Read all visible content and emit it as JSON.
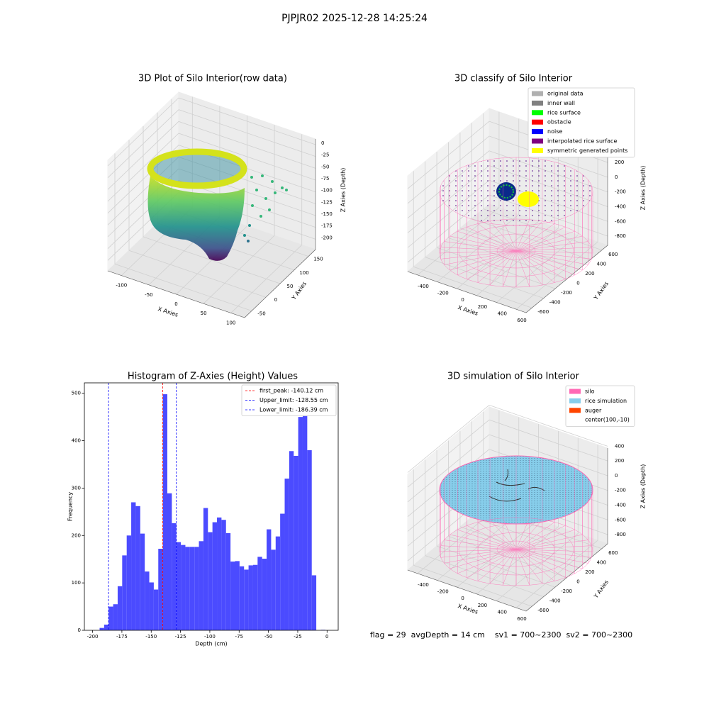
{
  "suptitle": "PJPJR02 2025-12-28 14:25:24",
  "chart_data": [
    {
      "type": "scatter3d",
      "title": "3D Plot of Silo Interior(row data)",
      "xlabel": "X Axies",
      "ylabel": "Y Axies",
      "zlabel": "Z Axies (Depth)",
      "xlim": [
        -125,
        125
      ],
      "xticks": [
        -100,
        -50,
        0,
        50,
        100
      ],
      "ylim": [
        -75,
        175
      ],
      "yticks": [
        -50,
        0,
        50,
        100,
        150
      ],
      "zlim": [
        -222,
        12
      ],
      "zticks": [
        0,
        -25,
        -50,
        -75,
        -100,
        -125,
        -150,
        -175,
        -200
      ],
      "grid": true
    },
    {
      "type": "scatter3d",
      "title": "3D classify of Silo Interior",
      "xlabel": "X Axies",
      "ylabel": "Y Axies",
      "zlabel": "Z Axies (Depth)",
      "xlim": [
        -500,
        700
      ],
      "xticks": [
        -400,
        -200,
        0,
        200,
        400,
        600
      ],
      "ylim": [
        -700,
        700
      ],
      "yticks": [
        -600,
        -400,
        -200,
        0,
        200,
        400,
        600
      ],
      "zlim": [
        -925,
        375
      ],
      "zticks": [
        -800,
        -600,
        -400,
        -200,
        0,
        200
      ],
      "grid": true,
      "legend_loc": "upper right",
      "legend": [
        {
          "name": "original data",
          "color": "#b0b0b0"
        },
        {
          "name": "inner wall",
          "color": "#808080"
        },
        {
          "name": "rice surface",
          "color": "#00ff00"
        },
        {
          "name": "obstacle",
          "color": "#ff0000"
        },
        {
          "name": "noise",
          "color": "#0000ff"
        },
        {
          "name": "interpolated rice surface",
          "color": "#800080"
        },
        {
          "name": "symmetric generated points",
          "color": "#ffff00"
        }
      ]
    },
    {
      "type": "histogram",
      "title": "Histogram of Z-Axies (Height) Values",
      "xlabel": "Depth (cm)",
      "ylabel": "Frequency",
      "color": "#4b4bff",
      "bins": [
        -194,
        -190.15,
        -186.3,
        -182.45,
        -178.6,
        -174.75,
        -170.9,
        -167.05,
        -163.2,
        -159.35,
        -155.5,
        -151.65,
        -147.8,
        -143.95,
        -140.1,
        -136.25,
        -132.4,
        -128.55,
        -124.7,
        -120.85,
        -117,
        -113.15,
        -109.3,
        -105.45,
        -101.6,
        -97.75,
        -93.9,
        -90.05,
        -86.2,
        -82.35,
        -78.5,
        -74.65,
        -70.8,
        -66.95,
        -63.1,
        -59.25,
        -55.4,
        -51.55,
        -47.7,
        -43.85,
        -40,
        -36.15,
        -32.3,
        -28.45,
        -24.6,
        -20.75,
        -16.9,
        -13.05,
        -9.2,
        -5.35,
        -1.5
      ],
      "counts": [
        5,
        12,
        50,
        55,
        93,
        158,
        200,
        270,
        262,
        204,
        124,
        101,
        86,
        172,
        498,
        289,
        226,
        186,
        180,
        176,
        176,
        176,
        188,
        258,
        207,
        228,
        238,
        233,
        205,
        145,
        146,
        135,
        128,
        137,
        138,
        155,
        151,
        213,
        170,
        198,
        246,
        320,
        378,
        368,
        450,
        458,
        380,
        116,
        0,
        1
      ],
      "xlim": [
        -207,
        9.5
      ],
      "xticks": [
        -200,
        -175,
        -150,
        -125,
        -100,
        -75,
        -50,
        -25,
        0
      ],
      "ylim": [
        0,
        522
      ],
      "yticks": [
        0,
        100,
        200,
        300,
        400,
        500
      ],
      "legend_loc": "upper right",
      "vlines": [
        {
          "value": -140.12,
          "label": "first_peak: -140.12 cm",
          "color": "#ff0000"
        },
        {
          "value": -128.55,
          "label": "Upper_limit: -128.55 cm",
          "color": "#0000ff"
        },
        {
          "value": -186.39,
          "label": "Lower_limit: -186.39 cm",
          "color": "#0000ff"
        }
      ]
    },
    {
      "type": "surface3d",
      "title": "3D simulation of Silo Interior",
      "xlabel": "X Axies",
      "ylabel": "Y Axies",
      "zlabel": "Z Axies (Depth)",
      "xlim": [
        -500,
        700
      ],
      "xticks": [
        -400,
        -200,
        0,
        200,
        400,
        600
      ],
      "ylim": [
        -700,
        700
      ],
      "yticks": [
        -600,
        -400,
        -200,
        0,
        200,
        400,
        600
      ],
      "zlim": [
        -925,
        375
      ],
      "zticks": [
        -800,
        -600,
        -400,
        -200,
        0,
        200,
        400
      ],
      "grid": true,
      "legend_loc": "upper right",
      "legend": [
        {
          "name": "silo",
          "color": "#ff69b4"
        },
        {
          "name": "rice simulation",
          "color": "#87ceeb"
        },
        {
          "name": "auger",
          "color": "#ff4500"
        },
        {
          "name": "center(100,-10)"
        }
      ]
    }
  ],
  "footer": "flag = 29  avgDepth = 14 cm    sv1 = 700~2300  sv2 = 700~2300"
}
